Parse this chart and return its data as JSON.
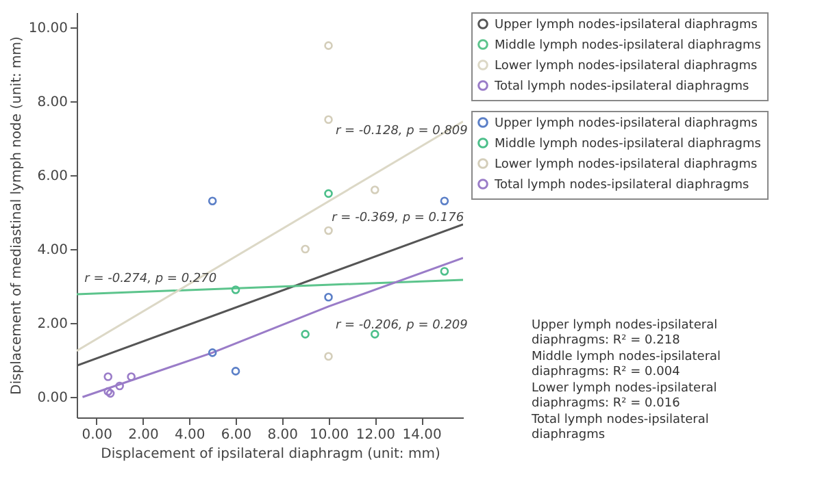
{
  "chart_data": {
    "type": "scatter",
    "xlabel": "Displacement of ipsilateral diaphragm (unit: mm)",
    "ylabel": "Displacement of mediastinal lymph node (unit: mm)",
    "xlim": [
      -0.85,
      15.8
    ],
    "ylim": [
      -0.55,
      10.4
    ],
    "xticks": [
      {
        "value": 0,
        "label": "0.00"
      },
      {
        "value": 2,
        "label": "2.00"
      },
      {
        "value": 4,
        "label": "4.00"
      },
      {
        "value": 6,
        "label": "6.00"
      },
      {
        "value": 8,
        "label": "8.00"
      },
      {
        "value": 10,
        "label": "10.00"
      },
      {
        "value": 12,
        "label": "12.00"
      },
      {
        "value": 14,
        "label": "14.00"
      }
    ],
    "yticks": [
      {
        "value": 0,
        "label": "0.00"
      },
      {
        "value": 2,
        "label": "2.00"
      },
      {
        "value": 4,
        "label": "4.00"
      },
      {
        "value": 6,
        "label": "6.00"
      },
      {
        "value": 8,
        "label": "8.00"
      },
      {
        "value": 10,
        "label": "10.00"
      }
    ],
    "grid": false,
    "legend": "top right",
    "series": [
      {
        "name": "Upper lymph nodes-ipsilateral diaphragms",
        "marker": "circle",
        "color": "#5b7fc7",
        "x": [
          5,
          6,
          10,
          5,
          15
        ],
        "values": [
          5.3,
          0.7,
          2.7,
          1.2,
          5.3
        ]
      },
      {
        "name": "Middle lymph nodes-ipsilateral diaphragms",
        "marker": "circle",
        "color": "#4cbf8a",
        "x": [
          6,
          10,
          9,
          12,
          15
        ],
        "values": [
          2.9,
          5.5,
          1.7,
          1.7,
          3.4
        ]
      },
      {
        "name": "Lower lymph nodes-ipsilateral diaphragms",
        "marker": "circle",
        "color": "#d4ceba",
        "x": [
          10,
          10,
          12,
          10,
          9,
          10
        ],
        "values": [
          9.5,
          7.5,
          5.6,
          4.5,
          4.0,
          1.1
        ]
      },
      {
        "name": "Total lymph nodes-ipsilateral diaphragms",
        "marker": "circle",
        "color": "#9a7cc8",
        "x": [
          0.5,
          0.5,
          0.6,
          1,
          1.5
        ],
        "values": [
          0.55,
          0.15,
          0.1,
          0.3,
          0.55
        ]
      },
      {
        "name": "Upper lymph nodes-ipsilateral diaphragms",
        "type": "line",
        "marker": "none",
        "line_style": "solid",
        "color": "#555555",
        "x": [
          -0.85,
          15.8
        ],
        "values": [
          0.85,
          4.67
        ]
      },
      {
        "name": "Middle lymph nodes-ipsilateral diaphragms",
        "type": "line",
        "marker": "none",
        "line_style": "solid",
        "color": "#5cc48c",
        "x": [
          -0.85,
          15.8
        ],
        "values": [
          2.78,
          3.17
        ]
      },
      {
        "name": "Lower lymph nodes-ipsilateral diaphragms",
        "type": "line",
        "marker": "none",
        "line_style": "solid",
        "color": "#dcd8c6",
        "x": [
          -0.85,
          15.8
        ],
        "values": [
          1.25,
          7.45
        ]
      },
      {
        "name": "Total lymph nodes-ipsilateral diaphragms",
        "type": "line",
        "marker": "none",
        "line_style": "solid",
        "color": "#9a7cc8",
        "x": [
          -0.6,
          5,
          10,
          15.8
        ],
        "values": [
          0,
          1.2,
          2.45,
          3.76
        ]
      }
    ],
    "annotations": [
      "r = -0.128, p = 0.809",
      "r = -0.369, p = 0.176",
      "r = -0.274, p = 0.270",
      "r = -0.206, p = 0.209",
      "Upper lymph nodes-ipsilateral diaphragms: R² = 0.218",
      "Middle lymph nodes-ipsilateral diaphragms: R² = 0.004",
      "Lower lymph nodes-ipsilateral diaphragms: R² = 0.016",
      "Total lymph nodes-ipsilateral diaphragms"
    ]
  }
}
